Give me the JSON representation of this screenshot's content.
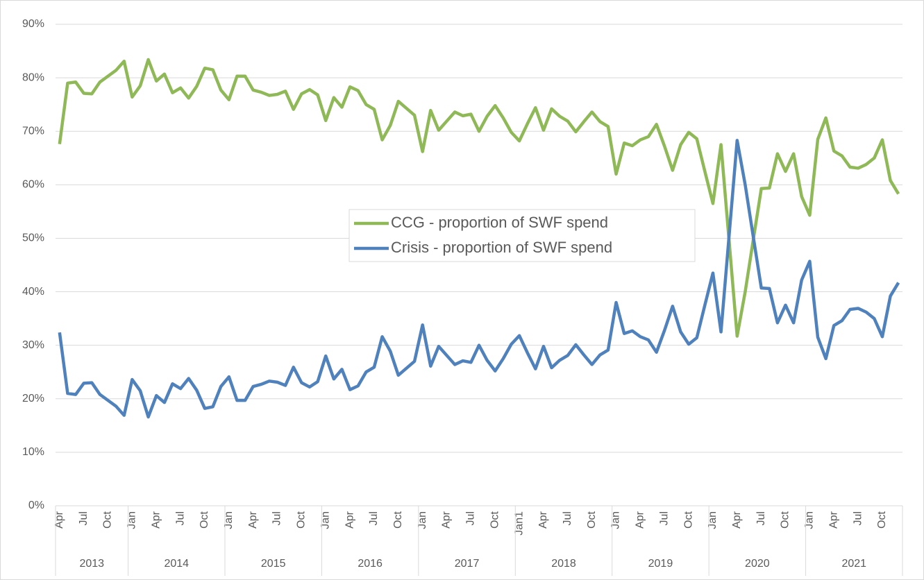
{
  "chart_data": {
    "type": "line",
    "categories": [
      "Apr",
      null,
      null,
      "Jul",
      null,
      null,
      "Oct",
      null,
      null,
      "Jan",
      null,
      null,
      "Apr",
      null,
      null,
      "Jul",
      null,
      null,
      "Oct",
      null,
      null,
      "Jan",
      null,
      null,
      "Apr",
      null,
      null,
      "Jul",
      null,
      null,
      "Oct",
      null,
      null,
      "Jan",
      null,
      null,
      "Apr",
      null,
      null,
      "Jul",
      null,
      null,
      "Oct",
      null,
      null,
      "Jan",
      null,
      null,
      "Apr",
      null,
      null,
      "Jul",
      null,
      null,
      "Oct",
      null,
      null,
      "Jan1",
      null,
      null,
      "Apr",
      null,
      null,
      "Jul",
      null,
      null,
      "Oct",
      null,
      null,
      "Jan",
      null,
      null,
      "Apr",
      null,
      null,
      "Jul",
      null,
      null,
      "Oct",
      null,
      null,
      "Jan",
      null,
      null,
      "Apr",
      null,
      null,
      "Jul",
      null,
      null,
      "Oct",
      null,
      null,
      "Jan",
      null,
      null,
      "Apr",
      null,
      null,
      "Jul",
      null,
      null,
      "Oct",
      null,
      null
    ],
    "category_groups": [
      "2013",
      "2014",
      "2015",
      "2016",
      "2017",
      "2018",
      "2019",
      "2020",
      "2021"
    ],
    "series": [
      {
        "name": "CCG - proportion of SWF spend",
        "color": "#8fb856",
        "values": [
          67.6,
          79,
          79.2,
          77.1,
          77,
          79.2,
          80.3,
          81.4,
          83.1,
          76.4,
          78.5,
          83.4,
          79.4,
          80.7,
          77.2,
          78.1,
          76.2,
          78.4,
          81.8,
          81.5,
          77.7,
          75.9,
          80.3,
          80.3,
          77.7,
          77.3,
          76.7,
          76.9,
          77.5,
          74.1,
          77,
          77.8,
          76.8,
          72,
          76.3,
          74.5,
          78.3,
          77.6,
          75,
          74.1,
          68.4,
          71.1,
          75.6,
          74.3,
          73,
          66.2,
          73.9,
          70.2,
          71.9,
          73.6,
          72.9,
          73.2,
          70,
          72.8,
          74.8,
          72.5,
          69.8,
          68.2,
          71.4,
          74.4,
          70.2,
          74.2,
          72.8,
          71.9,
          69.9,
          71.8,
          73.6,
          71.8,
          70.9,
          62,
          67.8,
          67.3,
          68.4,
          69,
          71.3,
          67.2,
          62.7,
          67.5,
          69.8,
          68.6,
          62.5,
          56.5,
          67.5,
          49.6,
          31.7,
          40,
          49.7,
          59.3,
          59.4,
          65.8,
          62.5,
          65.8,
          57.8,
          54.3,
          68.5,
          72.5,
          66.3,
          65.4,
          63.3,
          63.1,
          63.8,
          65,
          68.4,
          60.8,
          58.3
        ]
      },
      {
        "name": "Crisis - proportion of SWF spend",
        "color": "#4f81bd",
        "values": [
          32.4,
          21,
          20.8,
          22.9,
          23,
          20.8,
          19.7,
          18.6,
          16.9,
          23.6,
          21.5,
          16.6,
          20.6,
          19.3,
          22.8,
          21.9,
          23.8,
          21.6,
          18.2,
          18.5,
          22.3,
          24.1,
          19.7,
          19.7,
          22.3,
          22.7,
          23.3,
          23.1,
          22.5,
          25.9,
          23,
          22.2,
          23.2,
          28,
          23.7,
          25.5,
          21.7,
          22.4,
          25,
          25.9,
          31.6,
          28.9,
          24.4,
          25.7,
          27,
          33.8,
          26.1,
          29.8,
          28.1,
          26.4,
          27.1,
          26.8,
          30,
          27.2,
          25.2,
          27.5,
          30.2,
          31.8,
          28.6,
          25.6,
          29.8,
          25.8,
          27.2,
          28.1,
          30.1,
          28.2,
          26.4,
          28.2,
          29.1,
          38,
          32.2,
          32.7,
          31.6,
          31,
          28.7,
          32.8,
          37.3,
          32.5,
          30.2,
          31.4,
          37.5,
          43.5,
          32.5,
          50.4,
          68.3,
          60,
          50.3,
          40.7,
          40.6,
          34.2,
          37.5,
          34.2,
          42.2,
          45.7,
          31.5,
          27.5,
          33.7,
          34.6,
          36.7,
          36.9,
          36.2,
          35,
          31.6,
          39.2,
          41.7
        ]
      }
    ],
    "ylim": [
      0,
      90
    ],
    "yticks": [
      {
        "value": 0,
        "label": "0%"
      },
      {
        "value": 10,
        "label": "10%"
      },
      {
        "value": 20,
        "label": "20%"
      },
      {
        "value": 30,
        "label": "30%"
      },
      {
        "value": 40,
        "label": "40%"
      },
      {
        "value": 50,
        "label": "50%"
      },
      {
        "value": 60,
        "label": "60%"
      },
      {
        "value": 70,
        "label": "70%"
      },
      {
        "value": 80,
        "label": "80%"
      },
      {
        "value": 90,
        "label": "90%"
      }
    ],
    "grid": true
  }
}
